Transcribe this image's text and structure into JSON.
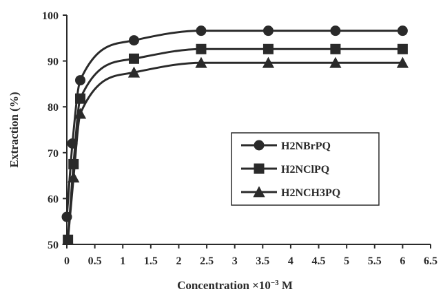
{
  "chart_data": {
    "type": "line",
    "title": "",
    "xlabel": "Concentration ×10",
    "xlabel_superscript": "−3",
    "xlabel_unit": " M",
    "ylabel": "Extraction (%)",
    "xlim": [
      0,
      6.5
    ],
    "ylim": [
      50,
      100
    ],
    "x_ticks": [
      "0",
      "0.5",
      "1",
      "1.5",
      "2",
      "2.5",
      "3",
      "3.5",
      "4",
      "4.5",
      "5",
      "5.5",
      "6",
      "6.5"
    ],
    "y_ticks": [
      "50",
      "60",
      "70",
      "80",
      "90",
      "100"
    ],
    "grid": false,
    "legend_position": "center-right",
    "series": [
      {
        "name": "H2NBrPQ",
        "marker": "circle",
        "x": [
          0,
          0.1,
          0.24,
          1.2,
          2.4,
          3.6,
          4.8,
          6.0
        ],
        "y": [
          56,
          72,
          85.8,
          94.5,
          96.6,
          96.6,
          96.6,
          96.6
        ]
      },
      {
        "name": "H2NClPQ",
        "marker": "square",
        "x": [
          0.02,
          0.12,
          0.24,
          1.2,
          2.4,
          3.6,
          4.8,
          6.0
        ],
        "y": [
          51,
          67.5,
          81.8,
          90.5,
          92.6,
          92.6,
          92.6,
          92.6
        ]
      },
      {
        "name": "H2NCH3PQ",
        "marker": "triangle",
        "x": [
          0.02,
          0.12,
          0.24,
          1.2,
          2.4,
          3.6,
          4.8,
          6.0
        ],
        "y": [
          51,
          64.6,
          78.5,
          87.5,
          89.6,
          89.6,
          89.6,
          89.6
        ]
      }
    ]
  }
}
